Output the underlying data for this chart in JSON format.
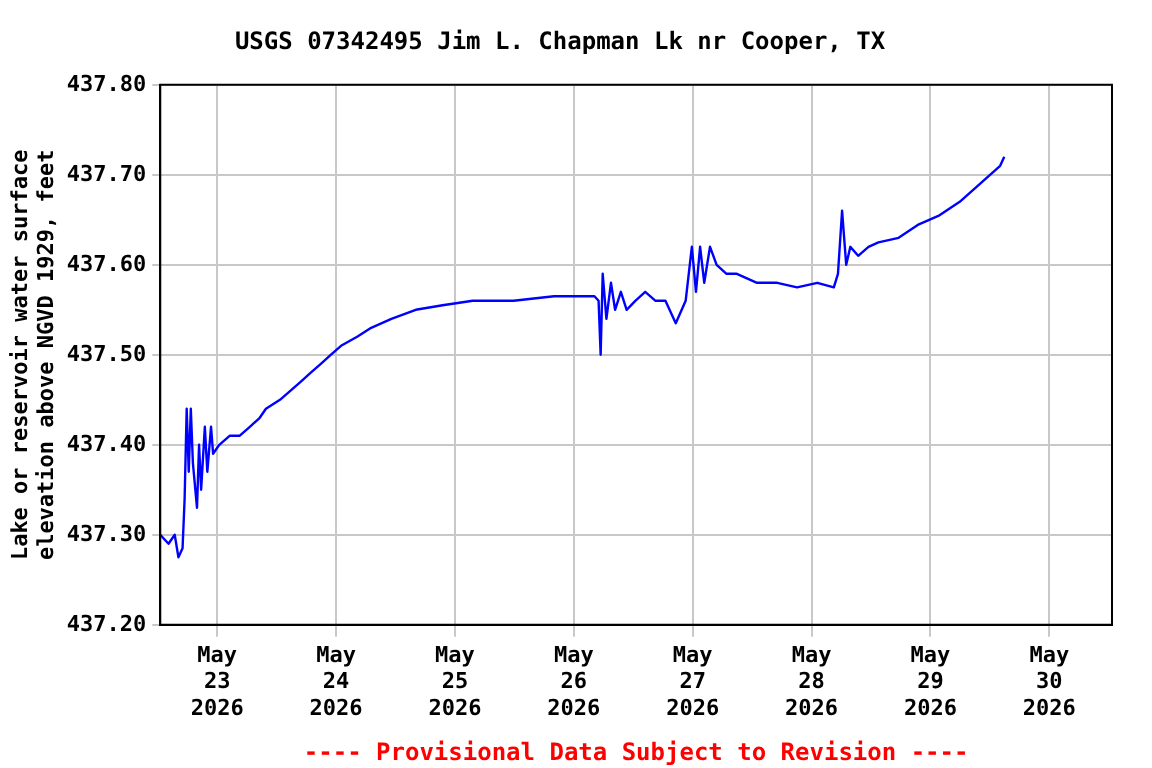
{
  "chart_data": {
    "type": "line",
    "title": "USGS 07342495 Jim L. Chapman Lk nr Cooper, TX",
    "ylabel": "Lake or reservoir water surface\nelevation above NGVD 1929, feet",
    "annotations": [
      "---- Provisional Data Subject to Revision ----"
    ],
    "x": [
      "2026-05-22T12:30",
      "2026-05-22T14:10",
      "2026-05-22T15:25",
      "2026-05-22T16:10",
      "2026-05-22T17:00",
      "2026-05-22T17:25",
      "2026-05-22T17:50",
      "2026-05-22T18:15",
      "2026-05-22T18:40",
      "2026-05-22T19:05",
      "2026-05-22T19:55",
      "2026-05-22T20:20",
      "2026-05-22T20:45",
      "2026-05-22T21:30",
      "2026-05-22T22:00",
      "2026-05-22T22:45",
      "2026-05-22T23:10",
      "2026-05-23T00:25",
      "2026-05-23T02:30",
      "2026-05-23T04:30",
      "2026-05-23T06:35",
      "2026-05-23T08:35",
      "2026-05-23T09:50",
      "2026-05-23T12:40",
      "2026-05-23T14:45",
      "2026-05-23T16:50",
      "2026-05-23T18:50",
      "2026-05-23T20:55",
      "2026-05-23T22:55",
      "2026-05-24T01:00",
      "2026-05-24T04:15",
      "2026-05-24T07:05",
      "2026-05-24T11:10",
      "2026-05-24T16:05",
      "2026-05-24T21:30",
      "2026-05-25T03:35",
      "2026-05-25T11:50",
      "2026-05-25T20:00",
      "2026-05-26T04:10",
      "2026-05-26T05:00",
      "2026-05-26T05:25",
      "2026-05-26T05:50",
      "2026-05-26T06:35",
      "2026-05-26T07:30",
      "2026-05-26T08:20",
      "2026-05-26T09:30",
      "2026-05-26T10:40",
      "2026-05-26T12:25",
      "2026-05-26T14:25",
      "2026-05-26T16:30",
      "2026-05-26T18:30",
      "2026-05-26T20:35",
      "2026-05-26T22:35",
      "2026-05-26T23:50",
      "2026-05-27T00:40",
      "2026-05-27T01:30",
      "2026-05-27T02:20",
      "2026-05-27T03:30",
      "2026-05-27T04:50",
      "2026-05-27T06:50",
      "2026-05-27T08:55",
      "2026-05-27T13:00",
      "2026-05-27T17:05",
      "2026-05-27T21:05",
      "2026-05-28T01:10",
      "2026-05-28T04:30",
      "2026-05-28T05:20",
      "2026-05-28T06:10",
      "2026-05-28T07:00",
      "2026-05-28T07:50",
      "2026-05-28T09:25",
      "2026-05-28T11:30",
      "2026-05-28T13:30",
      "2026-05-28T17:35",
      "2026-05-28T21:40",
      "2026-05-29T01:50",
      "2026-05-29T05:55",
      "2026-05-29T10:00",
      "2026-05-29T14:05",
      "2026-05-29T14:55"
    ],
    "series": [
      {
        "color": "#0000ff",
        "values": [
          437.3,
          437.29,
          437.3,
          437.275,
          437.285,
          437.34,
          437.44,
          437.37,
          437.44,
          437.38,
          437.33,
          437.4,
          437.35,
          437.42,
          437.37,
          437.42,
          437.39,
          437.4,
          437.41,
          437.41,
          437.42,
          437.43,
          437.44,
          437.45,
          437.46,
          437.47,
          437.48,
          437.49,
          437.5,
          437.51,
          437.52,
          437.53,
          437.54,
          437.55,
          437.555,
          437.56,
          437.56,
          437.565,
          437.565,
          437.56,
          437.5,
          437.59,
          437.54,
          437.58,
          437.55,
          437.57,
          437.55,
          437.56,
          437.57,
          437.56,
          437.56,
          437.535,
          437.56,
          437.62,
          437.57,
          437.62,
          437.58,
          437.62,
          437.6,
          437.59,
          437.59,
          437.58,
          437.58,
          437.575,
          437.58,
          437.575,
          437.59,
          437.66,
          437.6,
          437.62,
          437.61,
          437.62,
          437.625,
          437.63,
          437.645,
          437.655,
          437.67,
          437.69,
          437.71,
          437.72
        ]
      }
    ],
    "xlim": [
      "2026-05-22T12:30",
      "2026-05-30T12:40"
    ],
    "xticks": [
      {
        "value": "2026-05-23",
        "label": "May 23 2026"
      },
      {
        "value": "2026-05-24",
        "label": "May 24 2026"
      },
      {
        "value": "2026-05-25",
        "label": "May 25 2026"
      },
      {
        "value": "2026-05-26",
        "label": "May 26 2026"
      },
      {
        "value": "2026-05-27",
        "label": "May 27 2026"
      },
      {
        "value": "2026-05-28",
        "label": "May 28 2026"
      },
      {
        "value": "2026-05-29",
        "label": "May 29 2026"
      },
      {
        "value": "2026-05-30",
        "label": "May 30 2026"
      }
    ],
    "ylim": [
      437.2,
      437.8
    ],
    "yticks": [
      {
        "value": 437.2,
        "label": "437.20"
      },
      {
        "value": 437.3,
        "label": "437.30"
      },
      {
        "value": 437.4,
        "label": "437.40"
      },
      {
        "value": 437.5,
        "label": "437.50"
      },
      {
        "value": 437.6,
        "label": "437.60"
      },
      {
        "value": 437.7,
        "label": "437.70"
      },
      {
        "value": 437.8,
        "label": "437.80"
      }
    ],
    "grid": true,
    "legend": false,
    "marker": "none",
    "line_style": "solid"
  }
}
